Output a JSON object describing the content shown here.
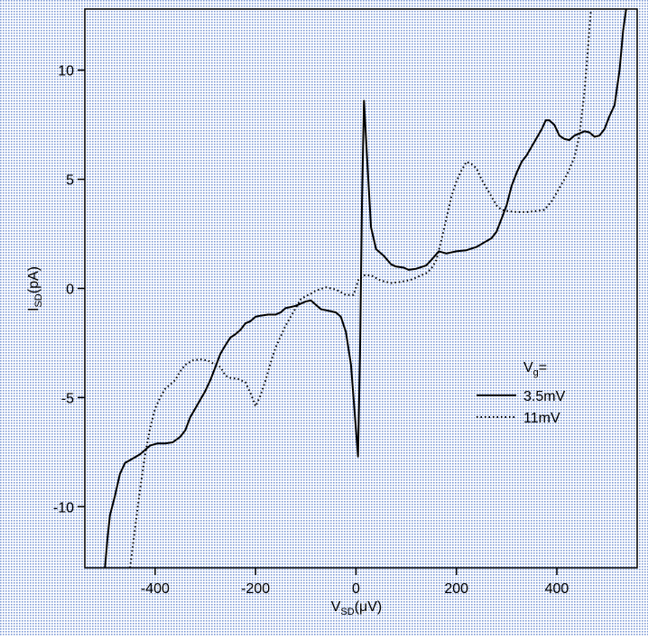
{
  "chart_data": {
    "type": "line",
    "title": "",
    "xlabel": {
      "main": "V",
      "sub": "SD",
      "unit": "(μV)"
    },
    "ylabel": {
      "main": "I",
      "sub": "SD",
      "unit": "(pA)"
    },
    "xlim": [
      -540,
      560
    ],
    "ylim": [
      -12.8,
      12.8
    ],
    "xticks": [
      -400,
      -200,
      0,
      200,
      400
    ],
    "yticks": [
      -10,
      -5,
      0,
      5,
      10
    ],
    "xtick_labels": [
      "-400",
      "-200",
      "0",
      "200",
      "400"
    ],
    "ytick_labels": [
      "-10",
      "-5",
      "0",
      "5",
      "10"
    ],
    "grid": false,
    "background": "stippled blue dot pattern",
    "legend": {
      "title_main": "V",
      "title_sub": "g",
      "title_suffix": "=",
      "placement": "right-middle"
    },
    "series": [
      {
        "name": "3.5mV",
        "style": "solid",
        "color": "#000000",
        "points": [
          [
            -500,
            -12.8
          ],
          [
            -495,
            -11.5
          ],
          [
            -490,
            -10.4
          ],
          [
            -480,
            -9.5
          ],
          [
            -470,
            -8.5
          ],
          [
            -460,
            -8.0
          ],
          [
            -445,
            -7.8
          ],
          [
            -430,
            -7.6
          ],
          [
            -420,
            -7.4
          ],
          [
            -410,
            -7.2
          ],
          [
            -395,
            -7.1
          ],
          [
            -380,
            -7.1
          ],
          [
            -365,
            -7.05
          ],
          [
            -350,
            -6.8
          ],
          [
            -340,
            -6.5
          ],
          [
            -330,
            -5.9
          ],
          [
            -320,
            -5.5
          ],
          [
            -310,
            -5.1
          ],
          [
            -300,
            -4.7
          ],
          [
            -290,
            -4.2
          ],
          [
            -280,
            -3.6
          ],
          [
            -270,
            -3.0
          ],
          [
            -260,
            -2.6
          ],
          [
            -250,
            -2.25
          ],
          [
            -240,
            -2.1
          ],
          [
            -230,
            -1.9
          ],
          [
            -220,
            -1.6
          ],
          [
            -210,
            -1.5
          ],
          [
            -200,
            -1.3
          ],
          [
            -190,
            -1.25
          ],
          [
            -175,
            -1.2
          ],
          [
            -160,
            -1.2
          ],
          [
            -150,
            -1.1
          ],
          [
            -140,
            -0.9
          ],
          [
            -130,
            -0.85
          ],
          [
            -120,
            -0.8
          ],
          [
            -110,
            -0.7
          ],
          [
            -100,
            -0.6
          ],
          [
            -90,
            -0.55
          ],
          [
            -80,
            -0.75
          ],
          [
            -70,
            -0.95
          ],
          [
            -60,
            -1.0
          ],
          [
            -50,
            -1.05
          ],
          [
            -40,
            -1.1
          ],
          [
            -30,
            -1.3
          ],
          [
            -20,
            -2.0
          ],
          [
            -10,
            -3.5
          ],
          [
            -3,
            -5.6
          ],
          [
            4,
            -7.7
          ],
          [
            8,
            -3.0
          ],
          [
            12,
            4.0
          ],
          [
            16,
            8.6
          ],
          [
            22,
            6.0
          ],
          [
            30,
            2.8
          ],
          [
            40,
            1.8
          ],
          [
            55,
            1.5
          ],
          [
            70,
            1.1
          ],
          [
            80,
            1.0
          ],
          [
            95,
            0.95
          ],
          [
            105,
            0.85
          ],
          [
            120,
            0.9
          ],
          [
            140,
            1.05
          ],
          [
            150,
            1.3
          ],
          [
            165,
            1.7
          ],
          [
            180,
            1.6
          ],
          [
            200,
            1.7
          ],
          [
            220,
            1.75
          ],
          [
            240,
            1.9
          ],
          [
            255,
            2.1
          ],
          [
            270,
            2.3
          ],
          [
            280,
            2.6
          ],
          [
            290,
            3.2
          ],
          [
            300,
            3.8
          ],
          [
            310,
            4.7
          ],
          [
            320,
            5.3
          ],
          [
            330,
            5.8
          ],
          [
            340,
            6.1
          ],
          [
            350,
            6.5
          ],
          [
            360,
            6.9
          ],
          [
            370,
            7.3
          ],
          [
            378,
            7.7
          ],
          [
            385,
            7.7
          ],
          [
            395,
            7.5
          ],
          [
            405,
            7.0
          ],
          [
            415,
            6.85
          ],
          [
            425,
            6.8
          ],
          [
            435,
            7.0
          ],
          [
            445,
            7.1
          ],
          [
            455,
            7.2
          ],
          [
            465,
            7.15
          ],
          [
            475,
            6.95
          ],
          [
            485,
            7.0
          ],
          [
            495,
            7.3
          ],
          [
            505,
            7.9
          ],
          [
            515,
            8.4
          ],
          [
            525,
            10.0
          ],
          [
            532,
            11.8
          ],
          [
            538,
            12.8
          ]
        ]
      },
      {
        "name": "11mV",
        "style": "dotted",
        "color": "#000000",
        "points": [
          [
            -450,
            -12.8
          ],
          [
            -440,
            -11.0
          ],
          [
            -430,
            -9.2
          ],
          [
            -420,
            -7.6
          ],
          [
            -410,
            -6.4
          ],
          [
            -400,
            -5.5
          ],
          [
            -390,
            -5.0
          ],
          [
            -380,
            -4.6
          ],
          [
            -370,
            -4.4
          ],
          [
            -360,
            -4.2
          ],
          [
            -350,
            -3.8
          ],
          [
            -340,
            -3.5
          ],
          [
            -325,
            -3.3
          ],
          [
            -310,
            -3.25
          ],
          [
            -295,
            -3.3
          ],
          [
            -280,
            -3.5
          ],
          [
            -270,
            -3.6
          ],
          [
            -260,
            -4.0
          ],
          [
            -250,
            -4.1
          ],
          [
            -235,
            -4.15
          ],
          [
            -220,
            -4.3
          ],
          [
            -210,
            -4.8
          ],
          [
            -200,
            -5.4
          ],
          [
            -190,
            -4.9
          ],
          [
            -180,
            -4.2
          ],
          [
            -170,
            -3.4
          ],
          [
            -160,
            -2.7
          ],
          [
            -150,
            -2.2
          ],
          [
            -140,
            -1.7
          ],
          [
            -130,
            -1.3
          ],
          [
            -120,
            -0.9
          ],
          [
            -110,
            -0.5
          ],
          [
            -100,
            -0.35
          ],
          [
            -90,
            -0.25
          ],
          [
            -80,
            -0.1
          ],
          [
            -60,
            0.05
          ],
          [
            -40,
            -0.05
          ],
          [
            -20,
            -0.3
          ],
          [
            -5,
            -0.3
          ],
          [
            5,
            0.4
          ],
          [
            15,
            0.6
          ],
          [
            30,
            0.6
          ],
          [
            50,
            0.35
          ],
          [
            70,
            0.25
          ],
          [
            90,
            0.3
          ],
          [
            110,
            0.4
          ],
          [
            125,
            0.55
          ],
          [
            140,
            0.7
          ],
          [
            150,
            0.9
          ],
          [
            160,
            1.3
          ],
          [
            170,
            2.2
          ],
          [
            180,
            3.2
          ],
          [
            190,
            4.2
          ],
          [
            200,
            4.9
          ],
          [
            210,
            5.4
          ],
          [
            220,
            5.8
          ],
          [
            230,
            5.7
          ],
          [
            240,
            5.5
          ],
          [
            250,
            5.0
          ],
          [
            260,
            4.6
          ],
          [
            270,
            4.2
          ],
          [
            280,
            3.8
          ],
          [
            290,
            3.6
          ],
          [
            300,
            3.55
          ],
          [
            320,
            3.5
          ],
          [
            340,
            3.5
          ],
          [
            360,
            3.55
          ],
          [
            375,
            3.6
          ],
          [
            390,
            4.0
          ],
          [
            405,
            4.6
          ],
          [
            420,
            5.2
          ],
          [
            435,
            6.0
          ],
          [
            445,
            7.0
          ],
          [
            455,
            9.0
          ],
          [
            462,
            11.0
          ],
          [
            468,
            12.8
          ]
        ]
      }
    ]
  }
}
